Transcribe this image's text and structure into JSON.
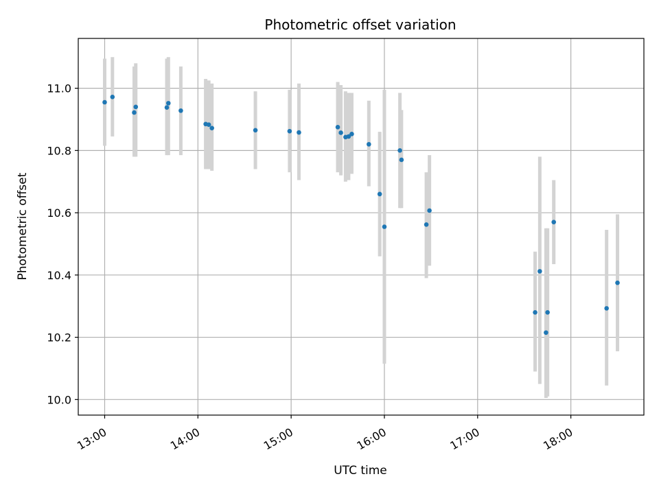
{
  "chart_data": {
    "type": "scatter",
    "title": "Photometric offset variation",
    "xlabel": "UTC time",
    "ylabel": "Photometric offset",
    "x_ticks": [
      "13:00",
      "14:00",
      "15:00",
      "16:00",
      "17:00",
      "18:00"
    ],
    "y_ticks": [
      "10.0",
      "10.2",
      "10.4",
      "10.6",
      "10.8",
      "11.0"
    ],
    "xlim": [
      "12:43",
      "18:47"
    ],
    "ylim": [
      9.95,
      11.16
    ],
    "grid": true,
    "colors": {
      "point": "#1f77b4",
      "errorbar": "#d3d3d3",
      "grid": "#b0b0b0"
    },
    "series": [
      {
        "points": [
          {
            "x": "13:00",
            "y": 10.955,
            "ylow": 10.815,
            "yhigh": 11.095
          },
          {
            "x": "13:05",
            "y": 10.972,
            "ylow": 10.845,
            "yhigh": 11.1
          },
          {
            "x": "13:19",
            "y": 10.922,
            "ylow": 10.78,
            "yhigh": 11.07
          },
          {
            "x": "13:20",
            "y": 10.94,
            "ylow": 10.78,
            "yhigh": 11.08
          },
          {
            "x": "13:40",
            "y": 10.938,
            "ylow": 10.785,
            "yhigh": 11.095
          },
          {
            "x": "13:41",
            "y": 10.952,
            "ylow": 10.785,
            "yhigh": 11.1
          },
          {
            "x": "13:49",
            "y": 10.928,
            "ylow": 10.785,
            "yhigh": 11.07
          },
          {
            "x": "14:05",
            "y": 10.885,
            "ylow": 10.74,
            "yhigh": 11.03
          },
          {
            "x": "14:07",
            "y": 10.883,
            "ylow": 10.74,
            "yhigh": 11.025
          },
          {
            "x": "14:09",
            "y": 10.872,
            "ylow": 10.735,
            "yhigh": 11.015
          },
          {
            "x": "14:37",
            "y": 10.865,
            "ylow": 10.74,
            "yhigh": 10.99
          },
          {
            "x": "14:59",
            "y": 10.862,
            "ylow": 10.73,
            "yhigh": 10.995
          },
          {
            "x": "15:05",
            "y": 10.858,
            "ylow": 10.705,
            "yhigh": 11.015
          },
          {
            "x": "15:30",
            "y": 10.875,
            "ylow": 10.73,
            "yhigh": 11.02
          },
          {
            "x": "15:32",
            "y": 10.857,
            "ylow": 10.72,
            "yhigh": 11.01
          },
          {
            "x": "15:35",
            "y": 10.843,
            "ylow": 10.7,
            "yhigh": 10.99
          },
          {
            "x": "15:37",
            "y": 10.845,
            "ylow": 10.705,
            "yhigh": 10.985
          },
          {
            "x": "15:39",
            "y": 10.853,
            "ylow": 10.725,
            "yhigh": 10.985
          },
          {
            "x": "15:50",
            "y": 10.82,
            "ylow": 10.685,
            "yhigh": 10.96
          },
          {
            "x": "15:57",
            "y": 10.66,
            "ylow": 10.46,
            "yhigh": 10.86
          },
          {
            "x": "16:00",
            "y": 10.555,
            "ylow": 10.115,
            "yhigh": 10.995
          },
          {
            "x": "16:10",
            "y": 10.8,
            "ylow": 10.615,
            "yhigh": 10.985
          },
          {
            "x": "16:11",
            "y": 10.77,
            "ylow": 10.615,
            "yhigh": 10.93
          },
          {
            "x": "16:27",
            "y": 10.562,
            "ylow": 10.39,
            "yhigh": 10.73
          },
          {
            "x": "16:29",
            "y": 10.607,
            "ylow": 10.43,
            "yhigh": 10.785
          },
          {
            "x": "17:37",
            "y": 10.28,
            "ylow": 10.09,
            "yhigh": 10.475
          },
          {
            "x": "17:40",
            "y": 10.412,
            "ylow": 10.05,
            "yhigh": 10.78
          },
          {
            "x": "17:44",
            "y": 10.215,
            "ylow": 10.005,
            "yhigh": 10.55
          },
          {
            "x": "17:45",
            "y": 10.28,
            "ylow": 10.01,
            "yhigh": 10.55
          },
          {
            "x": "17:49",
            "y": 10.57,
            "ylow": 10.435,
            "yhigh": 10.705
          },
          {
            "x": "18:23",
            "y": 10.293,
            "ylow": 10.045,
            "yhigh": 10.545
          },
          {
            "x": "18:30",
            "y": 10.375,
            "ylow": 10.155,
            "yhigh": 10.595
          }
        ]
      }
    ]
  }
}
